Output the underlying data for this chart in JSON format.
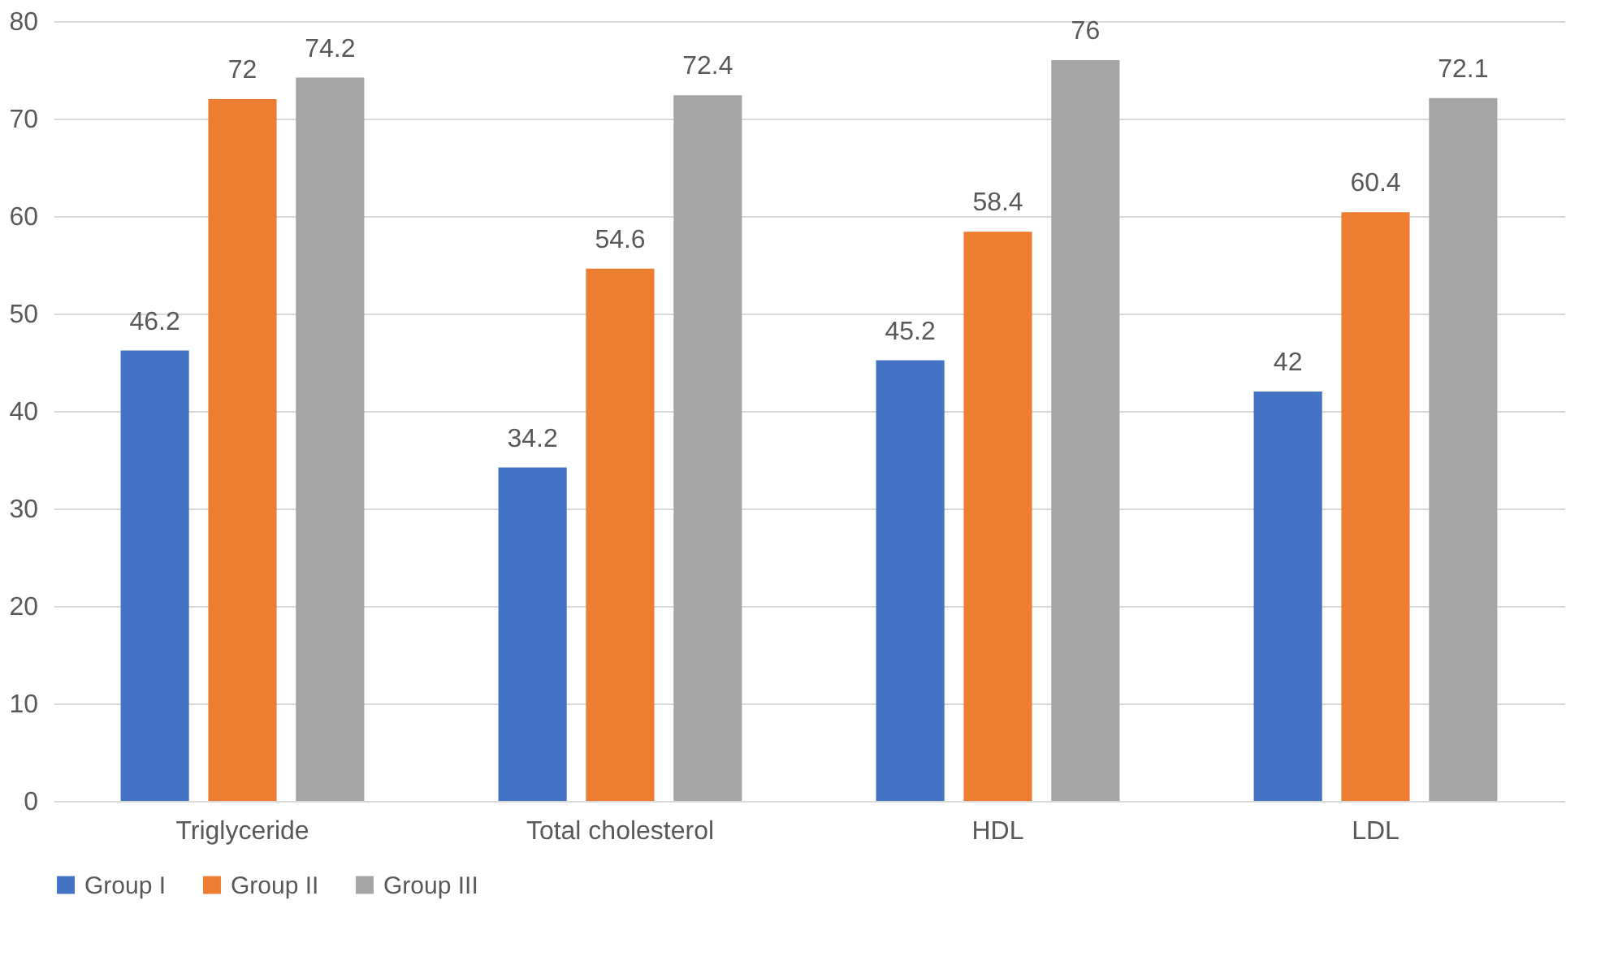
{
  "chart_data": {
    "type": "bar",
    "categories": [
      "Triglyceride",
      "Total cholesterol",
      "HDL",
      "LDL"
    ],
    "series": [
      {
        "name": "Group I",
        "color": "#4472c4",
        "values": [
          46.2,
          34.2,
          45.2,
          42
        ]
      },
      {
        "name": "Group II",
        "color": "#ed7d31",
        "values": [
          72,
          54.6,
          58.4,
          60.4
        ]
      },
      {
        "name": "Group III",
        "color": "#a5a5a5",
        "values": [
          74.2,
          72.4,
          76,
          72.1
        ]
      }
    ],
    "ylim": [
      0,
      80
    ],
    "yticks": [
      0,
      10,
      20,
      30,
      40,
      50,
      60,
      70,
      80
    ],
    "grid": "y",
    "legend": "bottom",
    "data_labels": true
  }
}
